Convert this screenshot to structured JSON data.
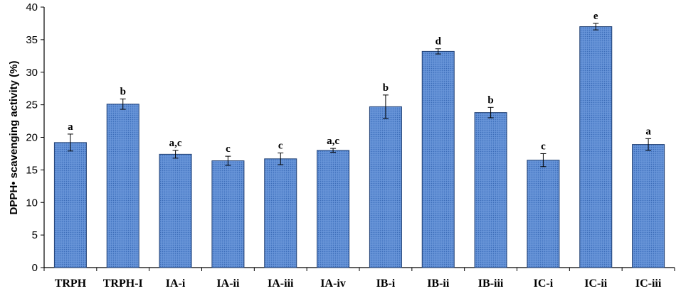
{
  "chart_data": {
    "type": "bar",
    "title": "",
    "xlabel": "",
    "ylabel": "DPPH• scavenging activity (%)",
    "ylim": [
      0,
      40
    ],
    "yticks": [
      0,
      5,
      10,
      15,
      20,
      25,
      30,
      35,
      40
    ],
    "grid": false,
    "legend": "none",
    "categories": [
      "TRPH",
      "TRPH-I",
      "IA-i",
      "IA-ii",
      "IA-iii",
      "IA-iv",
      "IB-i",
      "IB-ii",
      "IB-iii",
      "IC-i",
      "IC-ii",
      "IC-iii"
    ],
    "values": [
      19.2,
      25.1,
      17.4,
      16.4,
      16.7,
      18.0,
      24.7,
      33.2,
      23.8,
      16.5,
      37.0,
      18.9
    ],
    "errors": [
      1.3,
      0.8,
      0.6,
      0.7,
      0.9,
      0.3,
      1.8,
      0.4,
      0.8,
      1.0,
      0.5,
      0.9
    ],
    "significance_labels": [
      "a",
      "b",
      "a,c",
      "c",
      "c",
      "a,c",
      "b",
      "d",
      "b",
      "c",
      "e",
      "a"
    ],
    "colors": {
      "bar_fill": "#5b8bd3",
      "bar_stroke": "#1f3f73",
      "axis": "#000000"
    }
  }
}
